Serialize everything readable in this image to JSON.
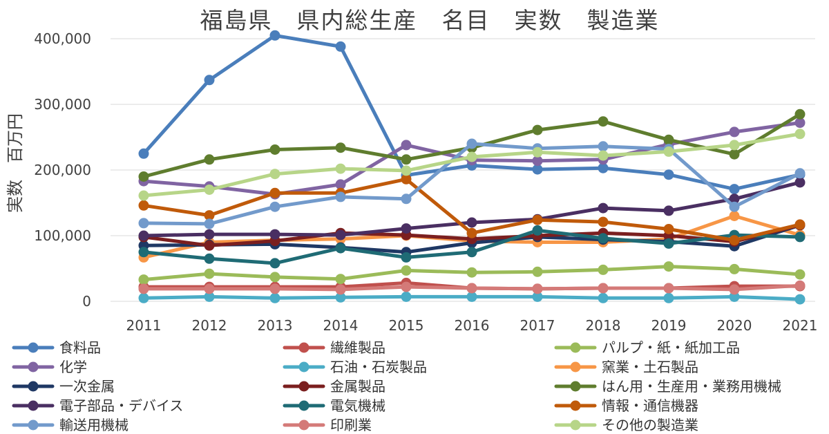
{
  "chart_data": {
    "type": "line",
    "title": "福島県　県内総生産　名目　実数　製造業",
    "xlabel": "",
    "ylabel": "実数　百万円",
    "categories": [
      "2011",
      "2012",
      "2013",
      "2014",
      "2015",
      "2016",
      "2017",
      "2018",
      "2019",
      "2020",
      "2021"
    ],
    "ylim": [
      0,
      400000
    ],
    "yticks": [
      {
        "value": 0,
        "label": "0"
      },
      {
        "value": 100000,
        "label": "100,000"
      },
      {
        "value": 200000,
        "label": "200,000"
      },
      {
        "value": 300000,
        "label": "300,000"
      },
      {
        "value": 400000,
        "label": "400,000"
      }
    ],
    "grid": true,
    "legend_position": "bottom",
    "series": [
      {
        "name": "食料品",
        "color": "#4a7ebb",
        "values": [
          225000,
          337000,
          405000,
          388000,
          192000,
          207000,
          201000,
          203000,
          193000,
          171000,
          193000
        ]
      },
      {
        "name": "繊維製品",
        "color": "#c0504d",
        "values": [
          22000,
          22000,
          22000,
          22000,
          28000,
          20000,
          19000,
          20000,
          20000,
          23000,
          23000
        ]
      },
      {
        "name": "パルプ・紙・紙加工品",
        "color": "#9bbb59",
        "values": [
          33000,
          42000,
          37000,
          34000,
          47000,
          44000,
          45000,
          48000,
          53000,
          49000,
          41000
        ]
      },
      {
        "name": "化学",
        "color": "#8064a2",
        "values": [
          183000,
          175000,
          163000,
          178000,
          238000,
          215000,
          214000,
          216000,
          239000,
          258000,
          272000
        ]
      },
      {
        "name": "石油・石炭製品",
        "color": "#4bacc6",
        "values": [
          5000,
          7000,
          5000,
          6000,
          7000,
          7000,
          7000,
          5000,
          5000,
          7000,
          3000
        ]
      },
      {
        "name": "窯業・土石製品",
        "color": "#f79646",
        "values": [
          67000,
          90000,
          93000,
          95000,
          100000,
          92000,
          90000,
          90000,
          95000,
          130000,
          101000
        ]
      },
      {
        "name": "一次金属",
        "color": "#1f3864",
        "values": [
          85000,
          86000,
          87000,
          82000,
          75000,
          89000,
          98000,
          94000,
          91000,
          84000,
          116000
        ]
      },
      {
        "name": "金属製品",
        "color": "#7b1f1f",
        "values": [
          98000,
          85000,
          92000,
          104000,
          101000,
          95000,
          100000,
          104000,
          100000,
          91000,
          116000
        ]
      },
      {
        "name": "はん用・生産用・業務用機械",
        "color": "#5f7d2e",
        "values": [
          190000,
          216000,
          231000,
          234000,
          216000,
          234000,
          261000,
          274000,
          246000,
          224000,
          285000
        ]
      },
      {
        "name": "電子部品・デバイス",
        "color": "#4a2f62",
        "values": [
          100000,
          102000,
          102000,
          101000,
          111000,
          120000,
          125000,
          142000,
          138000,
          156000,
          181000
        ]
      },
      {
        "name": "電気機械",
        "color": "#1f6b75",
        "values": [
          75000,
          65000,
          58000,
          81000,
          67000,
          75000,
          108000,
          96000,
          88000,
          101000,
          98000
        ]
      },
      {
        "name": "情報・通信機器",
        "color": "#c05a0a",
        "values": [
          146000,
          131000,
          165000,
          165000,
          186000,
          104000,
          124000,
          121000,
          110000,
          93000,
          117000
        ]
      },
      {
        "name": "輸送用機械",
        "color": "#729acb",
        "values": [
          119000,
          118000,
          144000,
          159000,
          156000,
          240000,
          233000,
          236000,
          232000,
          144000,
          195000
        ]
      },
      {
        "name": "印刷業",
        "color": "#d47a78",
        "values": [
          19000,
          19000,
          19000,
          18000,
          22000,
          20000,
          19000,
          20000,
          20000,
          18000,
          24000
        ]
      },
      {
        "name": "その他の製造業",
        "color": "#b7d588",
        "values": [
          161000,
          170000,
          194000,
          202000,
          199000,
          220000,
          227000,
          222000,
          228000,
          238000,
          255000
        ]
      }
    ]
  }
}
